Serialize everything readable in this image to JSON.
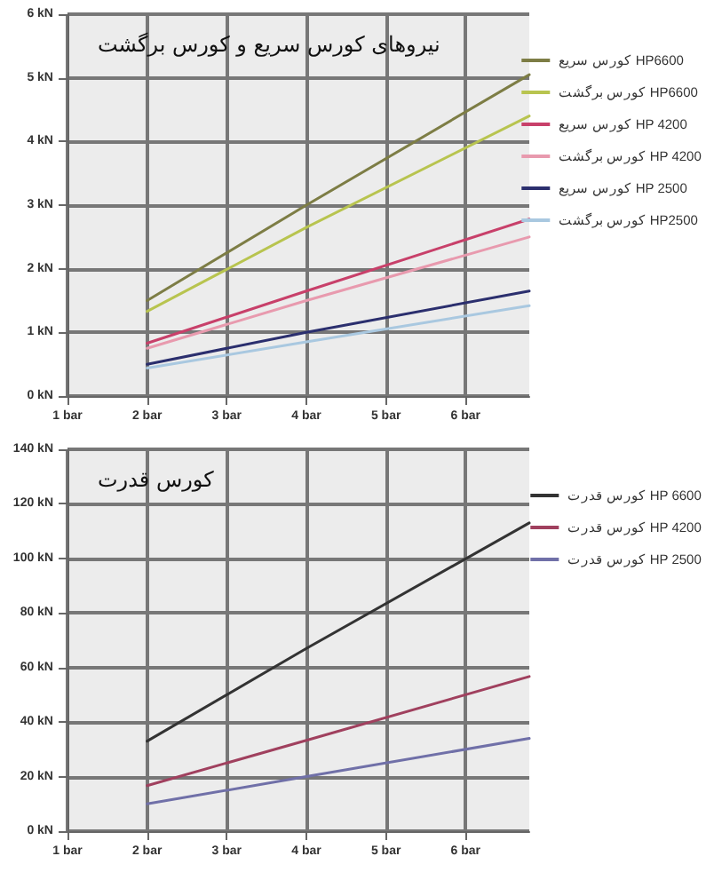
{
  "chart_data": [
    {
      "type": "line",
      "title": "نیروهای کورس سریع و کورس برگشت",
      "series": [
        {
          "name": "کورس سریع HP6600",
          "color": "#7d7d45",
          "x": [
            2,
            4,
            6.8
          ],
          "values": [
            1.5,
            3,
            5.05
          ]
        },
        {
          "name": "کورس برگشت HP6600",
          "color": "#b8c44f",
          "x": [
            2,
            4,
            6.8
          ],
          "values": [
            1.33,
            2.65,
            4.4
          ]
        },
        {
          "name": "کورس سریع HP 4200",
          "color": "#c8406a",
          "x": [
            2,
            4,
            6.8
          ],
          "values": [
            0.83,
            1.65,
            2.78
          ]
        },
        {
          "name": "کورس برگشت HP 4200",
          "color": "#e89aae",
          "x": [
            2,
            4,
            6.8
          ],
          "values": [
            0.75,
            1.5,
            2.5
          ]
        },
        {
          "name": "کورس سریع HP 2500",
          "color": "#2b2f6e",
          "x": [
            2,
            4,
            6.8
          ],
          "values": [
            0.5,
            1,
            1.65
          ]
        },
        {
          "name": "کورس برگشت HP2500",
          "color": "#a9c8e0",
          "x": [
            2,
            4,
            6.8
          ],
          "values": [
            0.44,
            0.85,
            1.42
          ]
        }
      ],
      "xlim": [
        1,
        6.8
      ],
      "xticks": [
        {
          "value": 1,
          "label": "1 bar"
        },
        {
          "value": 2,
          "label": "2 bar"
        },
        {
          "value": 3,
          "label": "3 bar"
        },
        {
          "value": 4,
          "label": "4 bar"
        },
        {
          "value": 5,
          "label": "5 bar"
        },
        {
          "value": 6,
          "label": "6 bar"
        }
      ],
      "ylim": [
        0,
        6
      ],
      "yticks": [
        {
          "value": 0,
          "label": "0 kN"
        },
        {
          "value": 1,
          "label": "1 kN"
        },
        {
          "value": 2,
          "label": "2 kN"
        },
        {
          "value": 3,
          "label": "3 kN"
        },
        {
          "value": 4,
          "label": "4 kN"
        },
        {
          "value": 5,
          "label": "5 kN"
        },
        {
          "value": 6,
          "label": "6 kN"
        }
      ],
      "grid": true,
      "legend": "right",
      "marker": "none",
      "line_style": "solid"
    },
    {
      "type": "line",
      "title": "کورس قدرت",
      "series": [
        {
          "name": "کورس قدرت HP 6600",
          "color": "#333333",
          "x": [
            2,
            4,
            6.8
          ],
          "values": [
            33,
            67,
            113
          ]
        },
        {
          "name": "کورس قدرت HP 4200",
          "color": "#a0405e",
          "x": [
            2,
            4,
            6.8
          ],
          "values": [
            16.7,
            33.3,
            56.7
          ]
        },
        {
          "name": "کورس قدرت HP 2500",
          "color": "#7070a8",
          "x": [
            2,
            4,
            6.8
          ],
          "values": [
            10,
            20,
            34
          ]
        }
      ],
      "xlim": [
        1,
        6.8
      ],
      "xticks": [
        {
          "value": 1,
          "label": "1 bar"
        },
        {
          "value": 2,
          "label": "2 bar"
        },
        {
          "value": 3,
          "label": "3 bar"
        },
        {
          "value": 4,
          "label": "4 bar"
        },
        {
          "value": 5,
          "label": "5 bar"
        },
        {
          "value": 6,
          "label": "6 bar"
        }
      ],
      "ylim": [
        0,
        140
      ],
      "yticks": [
        {
          "value": 0,
          "label": "0 kN"
        },
        {
          "value": 20,
          "label": "20 kN"
        },
        {
          "value": 40,
          "label": "40 kN"
        },
        {
          "value": 60,
          "label": "60 kN"
        },
        {
          "value": 80,
          "label": "80 kN"
        },
        {
          "value": 100,
          "label": "100 kN"
        },
        {
          "value": 120,
          "label": "120 kN"
        },
        {
          "value": 140,
          "label": "140 kN"
        }
      ],
      "grid": true,
      "legend": "right",
      "marker": "none",
      "line_style": "solid"
    }
  ]
}
